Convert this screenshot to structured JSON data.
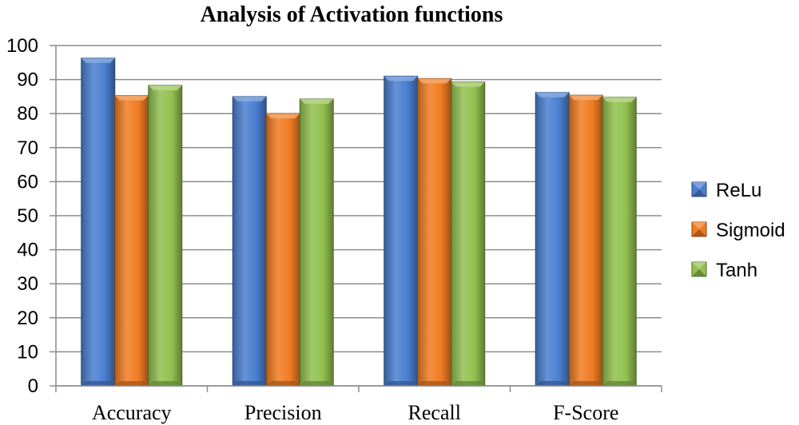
{
  "chart_data": {
    "type": "bar",
    "title": "Analysis of Activation functions",
    "xlabel": "",
    "ylabel": "",
    "categories": [
      "Accuracy",
      "Precision",
      "Recall",
      "F-Score"
    ],
    "series": [
      {
        "name": "ReLu",
        "color": "#4a7fd0",
        "values": [
          96.3,
          85.0,
          91.0,
          86.2
        ]
      },
      {
        "name": "Sigmoid",
        "color": "#f07c22",
        "values": [
          85.3,
          80.0,
          90.3,
          85.4
        ]
      },
      {
        "name": "Tanh",
        "color": "#92c14f",
        "values": [
          88.3,
          84.3,
          89.3,
          84.8
        ]
      }
    ],
    "ylim": [
      0,
      100
    ],
    "yticks": [
      0,
      10,
      20,
      30,
      40,
      50,
      60,
      70,
      80,
      90,
      100
    ],
    "grid": true,
    "legend": "right"
  }
}
